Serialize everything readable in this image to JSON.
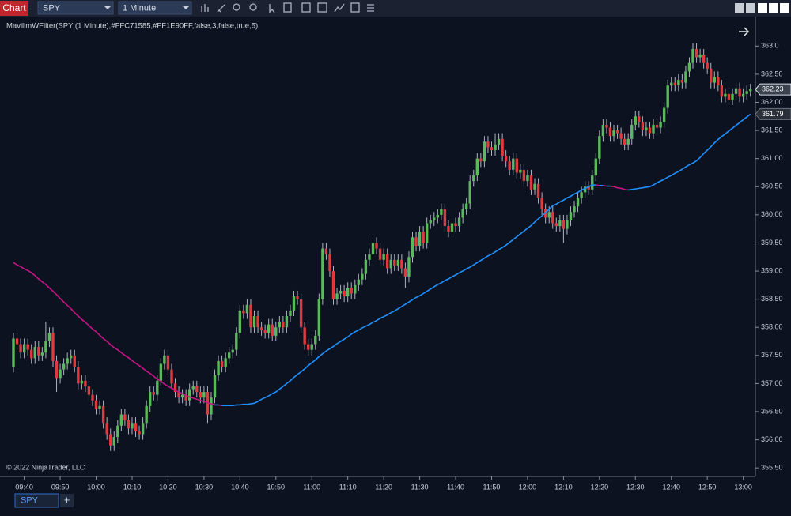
{
  "ui": {
    "window_title": "Chart",
    "instrument": "SPY",
    "interval": "1 Minute",
    "copyright": "© 2022 NinjaTrader, LLC",
    "tab": "SPY",
    "add_tab": "+"
  },
  "chart_data": {
    "type": "candlestick",
    "up_color": "#5cb85c",
    "down_color": "#e0393e",
    "ylim": [
      355.39,
      363.51
    ],
    "yticks": [
      {
        "value": 355.5,
        "label": "355.50"
      },
      {
        "value": 356,
        "label": "356.00"
      },
      {
        "value": 356.5,
        "label": "356.50"
      },
      {
        "value": 357,
        "label": "357.00"
      },
      {
        "value": 357.5,
        "label": "357.50"
      },
      {
        "value": 358,
        "label": "358.00"
      },
      {
        "value": 358.5,
        "label": "358.50"
      },
      {
        "value": 359,
        "label": "359.00"
      },
      {
        "value": 359.5,
        "label": "359.50"
      },
      {
        "value": 360,
        "label": "360.00"
      },
      {
        "value": 360.5,
        "label": "360.50"
      },
      {
        "value": 361,
        "label": "361.00"
      },
      {
        "value": 361.5,
        "label": "361.50"
      },
      {
        "value": 362,
        "label": "362.00"
      },
      {
        "value": 362.5,
        "label": "362.50"
      },
      {
        "value": 363,
        "label": "363.0"
      }
    ],
    "categories": [
      null,
      null,
      null,
      "09:40",
      null,
      null,
      null,
      null,
      null,
      null,
      null,
      null,
      null,
      "09:50",
      null,
      null,
      null,
      null,
      null,
      null,
      null,
      null,
      null,
      "10:00",
      null,
      null,
      null,
      null,
      null,
      null,
      null,
      null,
      null,
      "10:10",
      null,
      null,
      null,
      null,
      null,
      null,
      null,
      null,
      null,
      "10:20",
      null,
      null,
      null,
      null,
      null,
      null,
      null,
      null,
      null,
      "10:30",
      null,
      null,
      null,
      null,
      null,
      null,
      null,
      null,
      null,
      "10:40",
      null,
      null,
      null,
      null,
      null,
      null,
      null,
      null,
      null,
      "10:50",
      null,
      null,
      null,
      null,
      null,
      null,
      null,
      null,
      null,
      "11:00",
      null,
      null,
      null,
      null,
      null,
      null,
      null,
      null,
      null,
      "11:10",
      null,
      null,
      null,
      null,
      null,
      null,
      null,
      null,
      null,
      "11:20",
      null,
      null,
      null,
      null,
      null,
      null,
      null,
      null,
      null,
      "11:30",
      null,
      null,
      null,
      null,
      null,
      null,
      null,
      null,
      null,
      "11:40",
      null,
      null,
      null,
      null,
      null,
      null,
      null,
      null,
      null,
      "11:50",
      null,
      null,
      null,
      null,
      null,
      null,
      null,
      null,
      null,
      "12:00",
      null,
      null,
      null,
      null,
      null,
      null,
      null,
      null,
      null,
      "12:10",
      null,
      null,
      null,
      null,
      null,
      null,
      null,
      null,
      null,
      "12:20",
      null,
      null,
      null,
      null,
      null,
      null,
      null,
      null,
      null,
      "12:30",
      null,
      null,
      null,
      null,
      null,
      null,
      null,
      null,
      null,
      "12:40",
      null,
      null,
      null,
      null,
      null,
      null,
      null,
      null,
      null,
      "12:50",
      null,
      null,
      null,
      null,
      null,
      null,
      null,
      null,
      null,
      "13:00",
      null,
      null
    ],
    "open": [
      357.3,
      357.8,
      357.7,
      357.55,
      357.7,
      357.6,
      357.45,
      357.65,
      357.5,
      357.55,
      357.75,
      357.9,
      357.4,
      357.1,
      357.25,
      357.35,
      357.45,
      357.5,
      357.3,
      357.0,
      357.05,
      356.95,
      356.8,
      356.7,
      356.55,
      356.6,
      356.3,
      356.1,
      355.9,
      356.05,
      356.25,
      356.45,
      356.35,
      356.2,
      356.3,
      356.15,
      356.1,
      356.3,
      356.6,
      356.85,
      356.8,
      357.05,
      357.35,
      357.5,
      357.25,
      357.0,
      356.85,
      356.75,
      356.8,
      356.7,
      356.9,
      356.95,
      356.85,
      356.75,
      356.85,
      356.45,
      356.75,
      357.15,
      357.4,
      357.3,
      357.45,
      357.55,
      357.6,
      357.9,
      358.3,
      358.25,
      358.4,
      358.0,
      358.2,
      358.0,
      357.95,
      357.9,
      358.05,
      357.85,
      358.0,
      358.1,
      358.0,
      358.2,
      358.3,
      358.55,
      358.5,
      358.0,
      357.7,
      357.6,
      357.7,
      357.85,
      358.5,
      359.4,
      359.3,
      359.0,
      358.5,
      358.6,
      358.65,
      358.55,
      358.7,
      358.6,
      358.75,
      358.85,
      358.95,
      359.2,
      359.3,
      359.5,
      359.4,
      359.2,
      359.3,
      359.05,
      359.2,
      359.1,
      359.2,
      359.05,
      358.9,
      359.25,
      359.6,
      359.45,
      359.7,
      359.5,
      359.85,
      359.9,
      359.95,
      360.0,
      360.1,
      359.8,
      359.7,
      359.85,
      359.8,
      359.95,
      360.1,
      360.2,
      360.6,
      360.7,
      361.0,
      360.95,
      361.3,
      361.2,
      361.15,
      361.25,
      361.35,
      361.05,
      360.95,
      360.8,
      361.0,
      360.75,
      360.8,
      360.6,
      360.7,
      360.45,
      360.55,
      360.3,
      360.1,
      359.95,
      360.05,
      359.85,
      359.8,
      359.9,
      359.75,
      359.9,
      360.05,
      360.15,
      360.3,
      360.4,
      360.5,
      360.45,
      360.7,
      361.0,
      361.4,
      361.6,
      361.55,
      361.4,
      361.5,
      361.45,
      361.35,
      361.25,
      361.35,
      361.6,
      361.75,
      361.65,
      361.5,
      361.55,
      361.45,
      361.6,
      361.55,
      361.65,
      361.9,
      362.3,
      362.35,
      362.3,
      362.4,
      362.35,
      362.55,
      362.7,
      362.95,
      362.8,
      362.85,
      362.7,
      362.6,
      362.35,
      362.45,
      362.3,
      362.1,
      362.15,
      362.05,
      362.15,
      362.25,
      362.1,
      362.15,
      362.2
    ],
    "high": [
      357.9,
      357.9,
      357.8,
      357.8,
      357.8,
      357.7,
      357.75,
      357.75,
      357.65,
      358.1,
      358.0,
      358.0,
      357.5,
      357.35,
      357.45,
      357.55,
      357.6,
      357.6,
      357.4,
      357.15,
      357.15,
      357.05,
      356.9,
      356.8,
      356.7,
      356.7,
      356.4,
      356.2,
      356.15,
      356.35,
      356.55,
      356.55,
      356.45,
      356.4,
      356.4,
      356.25,
      356.4,
      356.7,
      356.95,
      356.95,
      357.15,
      357.45,
      357.6,
      357.6,
      357.35,
      357.1,
      356.95,
      356.9,
      356.9,
      357.0,
      357.05,
      357.05,
      356.95,
      356.95,
      356.95,
      356.85,
      357.25,
      357.5,
      357.5,
      357.55,
      357.65,
      357.7,
      358.0,
      358.4,
      358.4,
      358.5,
      358.5,
      358.3,
      358.3,
      358.1,
      358.05,
      358.15,
      358.15,
      358.1,
      358.2,
      358.2,
      358.3,
      358.4,
      358.65,
      358.65,
      358.6,
      358.1,
      357.8,
      357.8,
      357.95,
      358.6,
      359.5,
      359.5,
      359.4,
      359.1,
      358.7,
      358.75,
      358.75,
      358.8,
      358.8,
      358.85,
      358.95,
      359.05,
      359.3,
      359.4,
      359.6,
      359.6,
      359.5,
      359.4,
      359.4,
      359.3,
      359.3,
      359.3,
      359.3,
      359.15,
      359.35,
      359.7,
      359.7,
      359.8,
      359.8,
      359.95,
      360.0,
      360.05,
      360.1,
      360.2,
      360.2,
      359.9,
      359.95,
      359.95,
      360.05,
      360.2,
      360.3,
      360.7,
      360.8,
      361.1,
      361.1,
      361.4,
      361.4,
      361.3,
      361.45,
      361.45,
      361.45,
      361.15,
      361.05,
      361.1,
      361.1,
      360.9,
      360.9,
      360.8,
      360.8,
      360.65,
      360.65,
      360.4,
      360.2,
      360.15,
      360.15,
      359.95,
      360.0,
      360.0,
      360.0,
      360.15,
      360.25,
      360.4,
      360.5,
      360.6,
      360.6,
      360.8,
      361.1,
      361.5,
      361.7,
      361.7,
      361.65,
      361.6,
      361.6,
      361.55,
      361.45,
      361.45,
      361.7,
      361.85,
      361.85,
      361.75,
      361.65,
      361.65,
      361.7,
      361.7,
      361.75,
      362.0,
      362.4,
      362.45,
      362.45,
      362.5,
      362.5,
      362.65,
      362.8,
      363.05,
      363.05,
      362.95,
      362.95,
      362.8,
      362.7,
      362.55,
      362.55,
      362.4,
      362.25,
      362.25,
      362.25,
      362.35,
      362.35,
      362.25,
      362.3,
      362.33
    ],
    "low": [
      357.2,
      357.6,
      357.45,
      357.45,
      357.5,
      357.35,
      357.35,
      357.4,
      357.4,
      357.45,
      357.65,
      357.3,
      356.85,
      357.0,
      357.15,
      357.25,
      357.35,
      357.2,
      356.9,
      356.9,
      356.85,
      356.7,
      356.6,
      356.45,
      356.45,
      356.2,
      356.0,
      355.8,
      355.8,
      355.95,
      356.15,
      356.25,
      356.1,
      356.1,
      356.05,
      356.0,
      356.0,
      356.2,
      356.5,
      356.7,
      356.7,
      356.95,
      357.25,
      357.15,
      356.9,
      356.75,
      356.65,
      356.65,
      356.6,
      356.6,
      356.8,
      356.75,
      356.65,
      356.65,
      356.3,
      356.35,
      356.65,
      357.05,
      357.2,
      357.2,
      357.35,
      357.45,
      357.5,
      357.8,
      358.15,
      358.15,
      357.9,
      357.9,
      357.9,
      357.85,
      357.8,
      357.8,
      357.75,
      357.75,
      357.9,
      357.9,
      357.9,
      358.1,
      358.2,
      358.4,
      357.9,
      357.6,
      357.5,
      357.5,
      357.6,
      357.75,
      358.4,
      359.2,
      358.9,
      358.4,
      358.4,
      358.5,
      358.45,
      358.45,
      358.5,
      358.5,
      358.65,
      358.75,
      358.85,
      359.1,
      359.2,
      359.3,
      359.1,
      359.1,
      358.95,
      358.95,
      359.0,
      359.0,
      358.95,
      358.7,
      358.8,
      359.15,
      359.35,
      359.35,
      359.4,
      359.4,
      359.75,
      359.8,
      359.85,
      359.9,
      359.7,
      359.6,
      359.6,
      359.7,
      359.7,
      359.85,
      360.0,
      360.1,
      360.5,
      360.6,
      360.85,
      360.85,
      361.1,
      361.05,
      361.05,
      361.15,
      360.95,
      360.85,
      360.7,
      360.7,
      360.65,
      360.65,
      360.5,
      360.5,
      360.35,
      360.35,
      360.2,
      360.0,
      359.85,
      359.85,
      359.75,
      359.7,
      359.7,
      359.5,
      359.65,
      359.8,
      359.95,
      360.05,
      360.2,
      360.3,
      360.35,
      360.35,
      360.6,
      360.9,
      361.3,
      361.45,
      361.3,
      361.3,
      361.35,
      361.25,
      361.15,
      361.15,
      361.25,
      361.5,
      361.55,
      361.4,
      361.4,
      361.35,
      361.35,
      361.45,
      361.45,
      361.55,
      361.8,
      362.2,
      362.2,
      362.2,
      362.25,
      362.25,
      362.45,
      362.6,
      362.7,
      362.7,
      362.6,
      362.5,
      362.25,
      362.25,
      362.2,
      362.0,
      362.0,
      361.95,
      361.95,
      362.05,
      362.0,
      362.0,
      362.05,
      362.1
    ],
    "close": [
      357.8,
      357.7,
      357.55,
      357.7,
      357.6,
      357.45,
      357.65,
      357.5,
      357.55,
      357.75,
      357.9,
      357.4,
      357.1,
      357.25,
      357.35,
      357.45,
      357.5,
      357.3,
      357.0,
      357.05,
      356.95,
      356.8,
      356.7,
      356.55,
      356.6,
      356.3,
      356.1,
      355.9,
      356.05,
      356.25,
      356.45,
      356.35,
      356.2,
      356.3,
      356.15,
      356.1,
      356.3,
      356.6,
      356.85,
      356.8,
      357.05,
      357.35,
      357.5,
      357.25,
      357.0,
      356.85,
      356.75,
      356.8,
      356.7,
      356.9,
      356.95,
      356.85,
      356.75,
      356.85,
      356.45,
      356.75,
      357.15,
      357.4,
      357.3,
      357.45,
      357.55,
      357.6,
      357.9,
      358.3,
      358.25,
      358.4,
      358.0,
      358.2,
      358.0,
      357.95,
      357.9,
      358.05,
      357.85,
      358.0,
      358.1,
      358.0,
      358.2,
      358.3,
      358.55,
      358.5,
      358.0,
      357.7,
      357.6,
      357.7,
      357.85,
      358.5,
      359.4,
      359.3,
      359.0,
      358.5,
      358.6,
      358.65,
      358.55,
      358.7,
      358.6,
      358.75,
      358.85,
      358.95,
      359.2,
      359.3,
      359.5,
      359.4,
      359.2,
      359.3,
      359.05,
      359.2,
      359.1,
      359.2,
      359.05,
      358.9,
      359.25,
      359.6,
      359.45,
      359.7,
      359.5,
      359.85,
      359.9,
      359.95,
      360.0,
      360.1,
      359.8,
      359.7,
      359.85,
      359.8,
      359.95,
      360.1,
      360.2,
      360.6,
      360.7,
      361.0,
      360.95,
      361.3,
      361.2,
      361.15,
      361.25,
      361.35,
      361.05,
      360.95,
      360.8,
      361.0,
      360.75,
      360.8,
      360.6,
      360.7,
      360.45,
      360.55,
      360.3,
      360.1,
      359.95,
      360.05,
      359.85,
      359.8,
      359.9,
      359.75,
      359.9,
      360.05,
      360.15,
      360.3,
      360.4,
      360.5,
      360.45,
      360.7,
      361.0,
      361.4,
      361.6,
      361.55,
      361.4,
      361.5,
      361.45,
      361.35,
      361.25,
      361.35,
      361.6,
      361.75,
      361.65,
      361.5,
      361.55,
      361.45,
      361.6,
      361.55,
      361.65,
      361.9,
      362.3,
      362.35,
      362.3,
      362.4,
      362.35,
      362.55,
      362.7,
      362.95,
      362.8,
      362.85,
      362.7,
      362.6,
      362.35,
      362.45,
      362.3,
      362.1,
      362.15,
      362.05,
      362.15,
      362.25,
      362.1,
      362.15,
      362.2,
      362.23
    ],
    "indicator": {
      "name": "MavilimWFilter(SPY (1 Minute),#FFC71585,#FF1E90FF,false,3,false,true,5)",
      "rising_color": "#1e90ff",
      "falling_color": "#c71585",
      "values": [
        359.15,
        359.11,
        359.08,
        359.04,
        359.01,
        358.97,
        358.92,
        358.86,
        358.81,
        358.76,
        358.7,
        358.64,
        358.58,
        358.51,
        358.45,
        358.39,
        358.33,
        358.26,
        358.2,
        358.14,
        358.09,
        358.03,
        357.97,
        357.92,
        357.86,
        357.8,
        357.75,
        357.69,
        357.64,
        357.6,
        357.55,
        357.5,
        357.46,
        357.41,
        357.36,
        357.32,
        357.27,
        357.22,
        357.18,
        357.13,
        357.08,
        357.04,
        356.99,
        356.95,
        356.92,
        356.88,
        356.85,
        356.82,
        356.79,
        356.76,
        356.74,
        356.72,
        356.7,
        356.68,
        356.66,
        356.64,
        356.62,
        356.62,
        356.61,
        356.61,
        356.61,
        356.61,
        356.62,
        356.62,
        356.63,
        356.63,
        356.64,
        356.65,
        356.68,
        356.72,
        356.75,
        356.78,
        356.82,
        356.85,
        356.9,
        356.95,
        357.0,
        357.05,
        357.11,
        357.16,
        357.21,
        357.26,
        357.32,
        357.37,
        357.42,
        357.48,
        357.53,
        357.58,
        357.62,
        357.66,
        357.71,
        357.75,
        357.79,
        357.83,
        357.88,
        357.92,
        357.95,
        357.99,
        358.02,
        358.05,
        358.09,
        358.12,
        358.16,
        358.19,
        358.22,
        358.26,
        358.29,
        358.33,
        358.37,
        358.41,
        358.45,
        358.49,
        358.53,
        358.56,
        358.6,
        358.64,
        358.68,
        358.72,
        358.76,
        358.79,
        358.83,
        358.86,
        358.9,
        358.93,
        358.97,
        359.0,
        359.04,
        359.07,
        359.11,
        359.15,
        359.19,
        359.23,
        359.27,
        359.3,
        359.34,
        359.38,
        359.42,
        359.46,
        359.51,
        359.56,
        359.61,
        359.66,
        359.71,
        359.76,
        359.81,
        359.87,
        359.93,
        359.98,
        360.04,
        360.1,
        360.16,
        360.19,
        360.23,
        360.26,
        360.3,
        360.33,
        360.37,
        360.4,
        360.44,
        360.47,
        360.5,
        360.53,
        360.53,
        360.52,
        360.52,
        360.51,
        360.51,
        360.5,
        360.48,
        360.47,
        360.45,
        360.44,
        360.45,
        360.46,
        360.47,
        360.48,
        360.49,
        360.5,
        360.53,
        360.57,
        360.6,
        360.63,
        360.67,
        360.7,
        360.74,
        360.77,
        360.81,
        360.85,
        360.89,
        360.92,
        360.96,
        361.02,
        361.09,
        361.15,
        361.21,
        361.28,
        361.34,
        361.39,
        361.44,
        361.49,
        361.54,
        361.59,
        361.64,
        361.69,
        361.74,
        361.79
      ]
    }
  }
}
